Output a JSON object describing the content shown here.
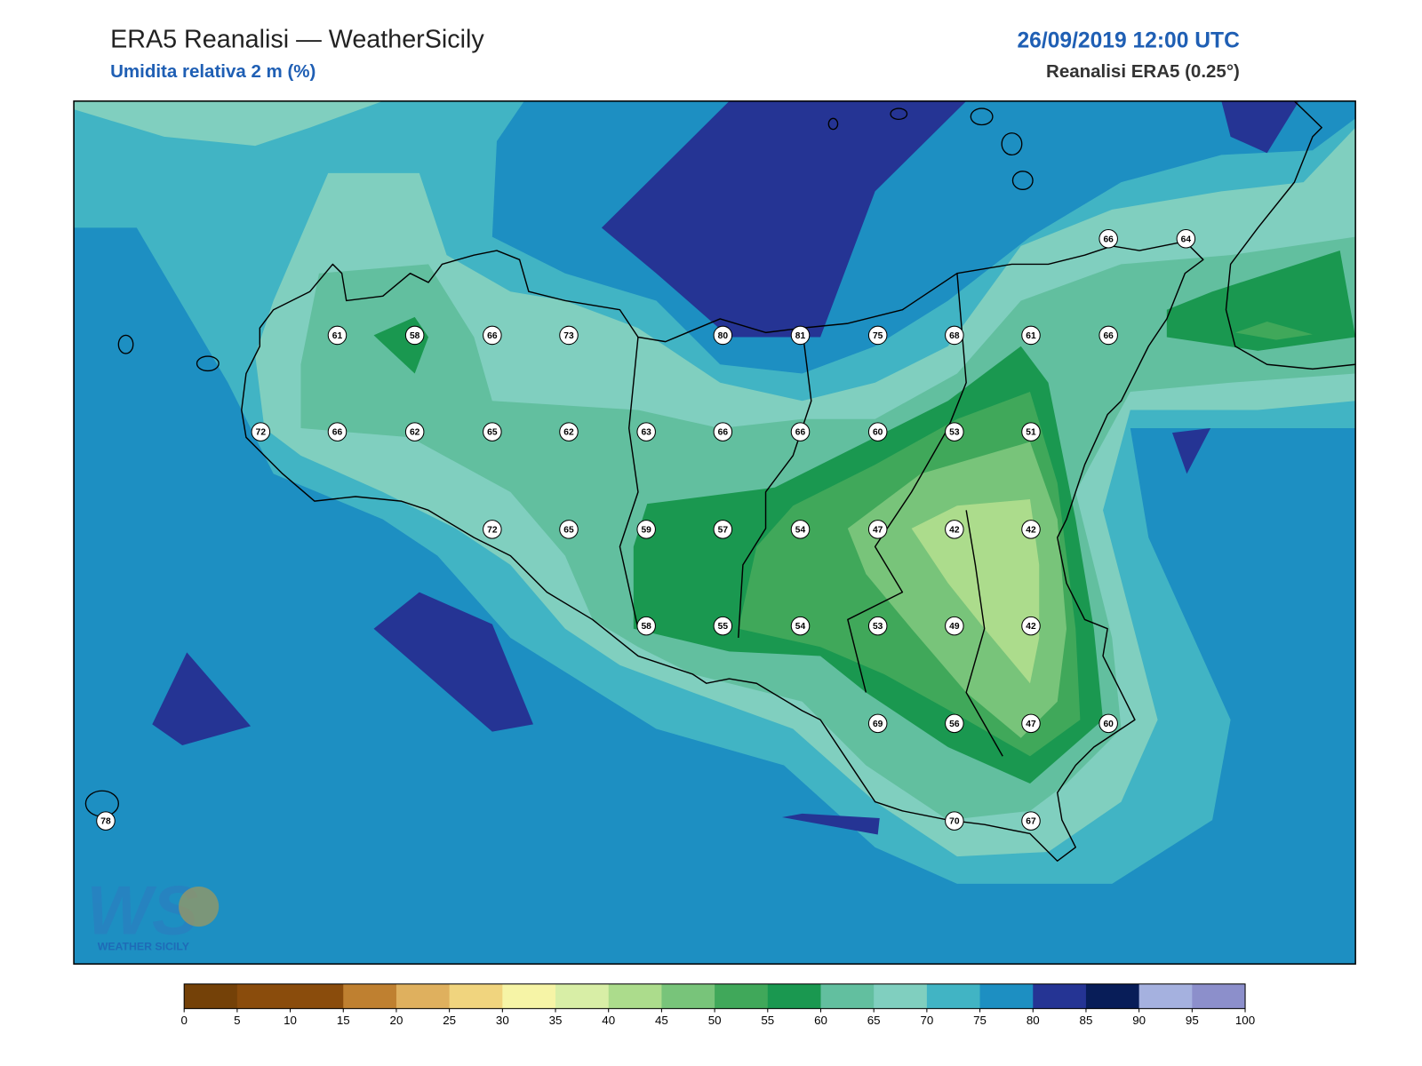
{
  "header": {
    "title": "ERA5 Reanalisi — WeatherSicily",
    "subtitle": "Umidita relativa 2 m (%)",
    "datetime": "26/09/2019 12:00 UTC",
    "source": "Reanalisi ERA5 (0.25°)"
  },
  "stations": [
    66,
    64,
    61,
    58,
    66,
    73,
    80,
    81,
    75,
    68,
    61,
    66,
    72,
    66,
    62,
    65,
    62,
    63,
    66,
    66,
    60,
    53,
    51,
    72,
    65,
    59,
    57,
    54,
    47,
    42,
    42,
    58,
    55,
    54,
    53,
    49,
    42,
    69,
    56,
    47,
    60,
    78,
    70,
    67
  ],
  "colorbar": {
    "ticks": [
      0,
      5,
      10,
      15,
      20,
      25,
      30,
      35,
      40,
      45,
      50,
      55,
      60,
      65,
      70,
      75,
      80,
      85,
      90,
      95,
      100
    ],
    "colors": [
      "#744108",
      "#8a4c0c",
      "#8a4c0c",
      "#bf8030",
      "#dfb05e",
      "#f0d47e",
      "#f6f4a6",
      "#d8eea6",
      "#acdc8c",
      "#78c47a",
      "#40a85a",
      "#1a9850",
      "#62bf9f",
      "#80cfbf",
      "#41b4c4",
      "#1d8fc2",
      "#253494",
      "#081d58",
      "#a5b1df",
      "#8c8fcb"
    ]
  },
  "logo": {
    "mark": "WS",
    "text": "WEATHER SICILY"
  }
}
